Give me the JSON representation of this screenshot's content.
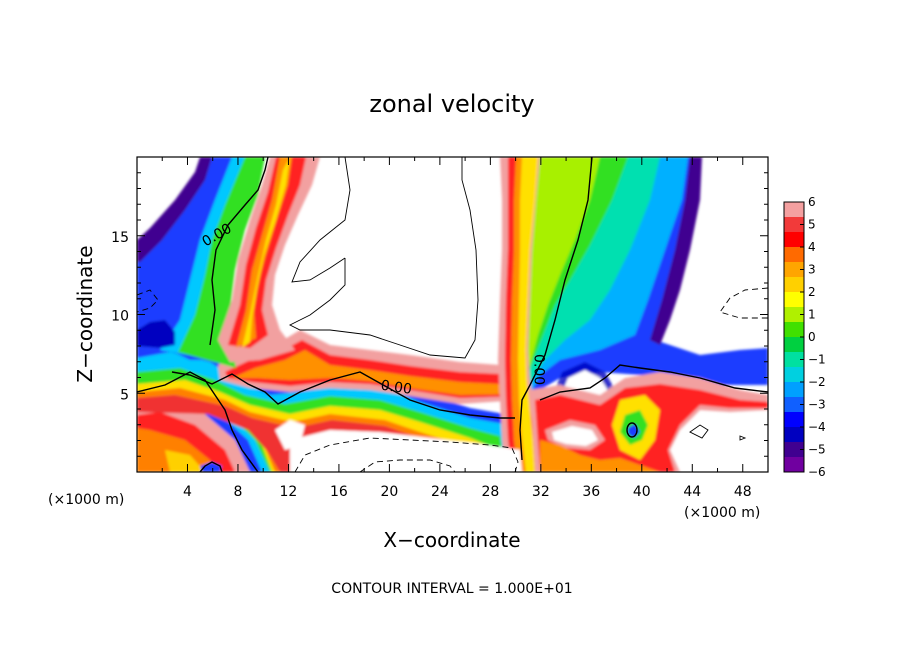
{
  "chart_data": {
    "type": "heatmap",
    "title": "zonal velocity",
    "xlabel": "X−coordinate",
    "ylabel": "Z−coordinate",
    "x_unit_left": "(×1000 m)",
    "x_unit_right": "(×1000 m)",
    "footer": "CONTOUR INTERVAL = 1.000E+01",
    "xlim": [
      0,
      50
    ],
    "ylim": [
      0,
      20
    ],
    "x_ticks": [
      4,
      8,
      12,
      16,
      20,
      24,
      28,
      32,
      36,
      40,
      44,
      48
    ],
    "x_tick_labels": [
      "4",
      "8",
      "12",
      "16",
      "20",
      "24",
      "28",
      "32",
      "36",
      "40",
      "44",
      "48"
    ],
    "y_ticks": [
      5,
      10,
      15
    ],
    "y_tick_labels": [
      "5",
      "10",
      "15"
    ],
    "colorbar": {
      "min": -6,
      "max": 6,
      "ticks": [
        6,
        5,
        4,
        3,
        2,
        1,
        0,
        -1,
        -2,
        -3,
        -4,
        -5,
        -6
      ],
      "tick_labels": [
        "6",
        "5",
        "4",
        "3",
        "2",
        "1",
        "0",
        "−1",
        "−2",
        "−3",
        "−4",
        "−5",
        "−6"
      ],
      "colors": [
        "#f4a0a0",
        "#f23a3a",
        "#ff0000",
        "#ff6a00",
        "#ffa500",
        "#ffd000",
        "#ffff00",
        "#b0f000",
        "#40e000",
        "#00d040",
        "#00e0a0",
        "#00d0e0",
        "#00a0ff",
        "#1060ff",
        "#0000ff",
        "#0000c0",
        "#400090",
        "#7000a0"
      ]
    },
    "contour_labels": [
      {
        "text": "0.00",
        "x": 6.5,
        "y": 14.8
      },
      {
        "text": "0.00",
        "x": 20.5,
        "y": 5.1
      },
      {
        "text": "0.00",
        "x": 31.5,
        "y": 6.5
      }
    ]
  }
}
